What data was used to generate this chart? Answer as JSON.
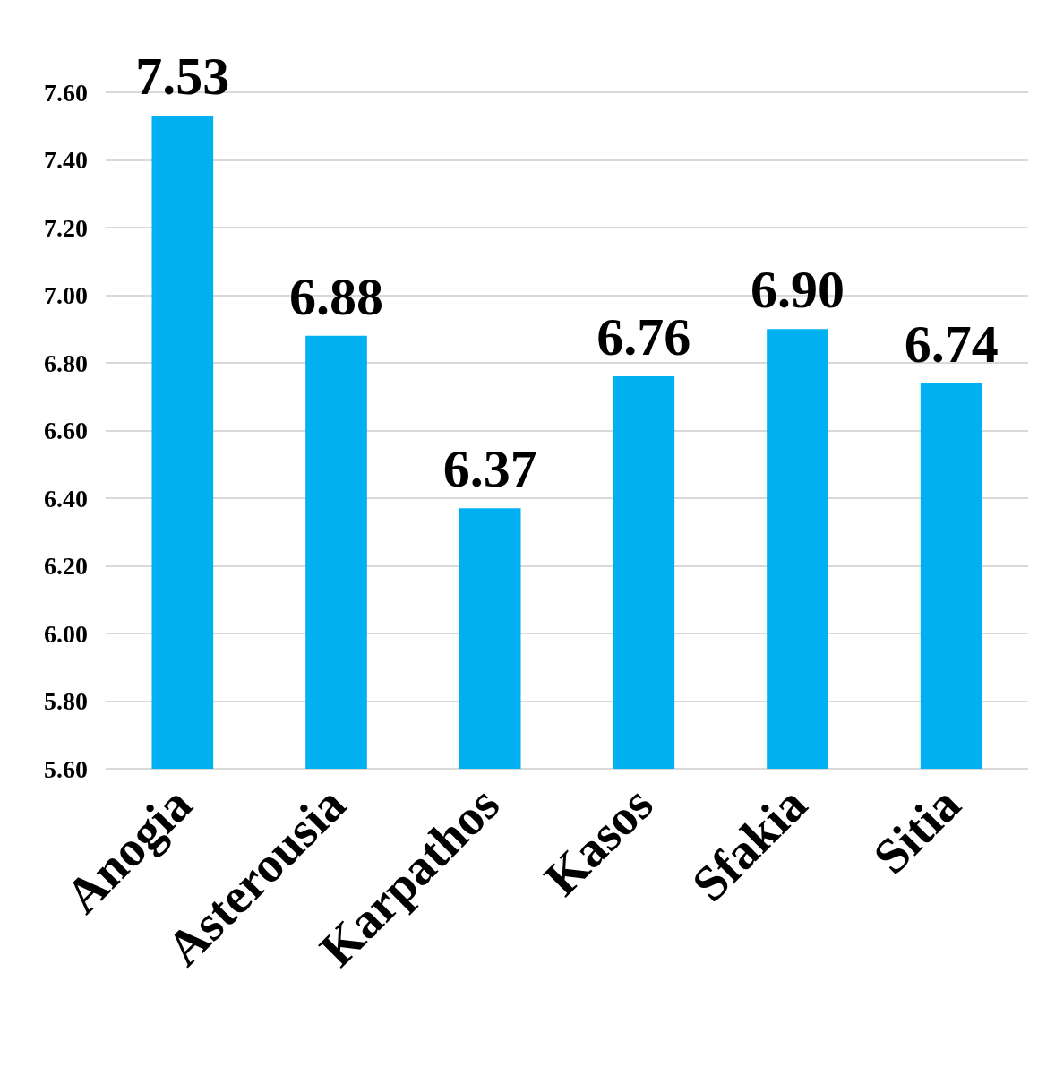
{
  "chart_data": {
    "type": "bar",
    "categories": [
      "Anogia",
      "Asterousia",
      "Karpathos",
      "Kasos",
      "Sfakia",
      "Sitia"
    ],
    "values": [
      7.53,
      6.88,
      6.37,
      6.76,
      6.9,
      6.74
    ],
    "value_labels": [
      "7.53",
      "6.88",
      "6.37",
      "6.76",
      "6.90",
      "6.74"
    ],
    "color": "#00b0f0",
    "ylim": [
      5.6,
      7.6
    ],
    "yticks": [
      {
        "value": 5.6,
        "label": "5.60"
      },
      {
        "value": 5.8,
        "label": "5.80"
      },
      {
        "value": 6.0,
        "label": "6.00"
      },
      {
        "value": 6.2,
        "label": "6.20"
      },
      {
        "value": 6.4,
        "label": "6.40"
      },
      {
        "value": 6.6,
        "label": "6.60"
      },
      {
        "value": 6.8,
        "label": "6.80"
      },
      {
        "value": 7.0,
        "label": "7.00"
      },
      {
        "value": 7.2,
        "label": "7.20"
      },
      {
        "value": 7.4,
        "label": "7.40"
      },
      {
        "value": 7.6,
        "label": "7.60"
      }
    ],
    "grid": true
  }
}
